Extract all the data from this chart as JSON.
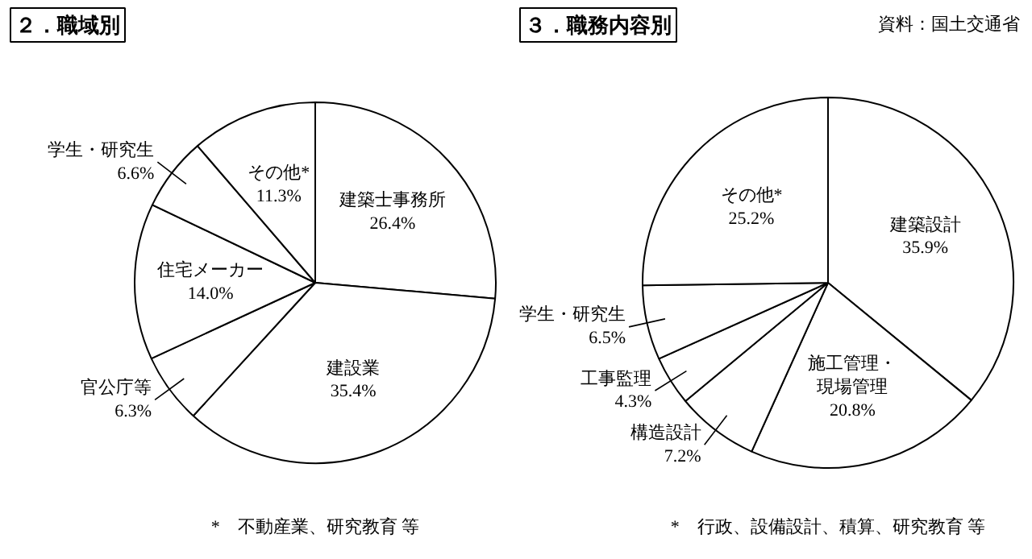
{
  "chart_data": [
    {
      "type": "pie",
      "title": "２．職域別",
      "categories": [
        "建築士事務所",
        "建設業",
        "官公庁等",
        "住宅メーカー",
        "学生・研究生",
        "その他*"
      ],
      "values": [
        26.4,
        35.4,
        6.3,
        14.0,
        6.6,
        11.3
      ],
      "value_labels": [
        "26.4%",
        "35.4%",
        "6.3%",
        "14.0%",
        "6.6%",
        "11.3%"
      ],
      "colors": [
        "#ffffff",
        "#ffffff",
        "#ffffff",
        "#ffffff",
        "#ffffff",
        "#ffffff"
      ],
      "annotations": [
        "*　不動産業、研究教育 等"
      ]
    },
    {
      "type": "pie",
      "title": "３．職務内容別",
      "categories": [
        "建築設計",
        "施工管理・現場管理",
        "構造設計",
        "工事監理",
        "学生・研究生",
        "その他*"
      ],
      "values": [
        35.9,
        20.8,
        7.2,
        4.3,
        6.5,
        25.2
      ],
      "value_labels": [
        "35.9%",
        "20.8%",
        "7.2%",
        "4.3%",
        "6.5%",
        "25.2%"
      ],
      "colors": [
        "#ffffff",
        "#ffffff",
        "#ffffff",
        "#ffffff",
        "#ffffff",
        "#ffffff"
      ],
      "annotations": [
        "資料：国土交通省",
        "*　行政、設備設計、積算、研究教育 等"
      ]
    }
  ]
}
